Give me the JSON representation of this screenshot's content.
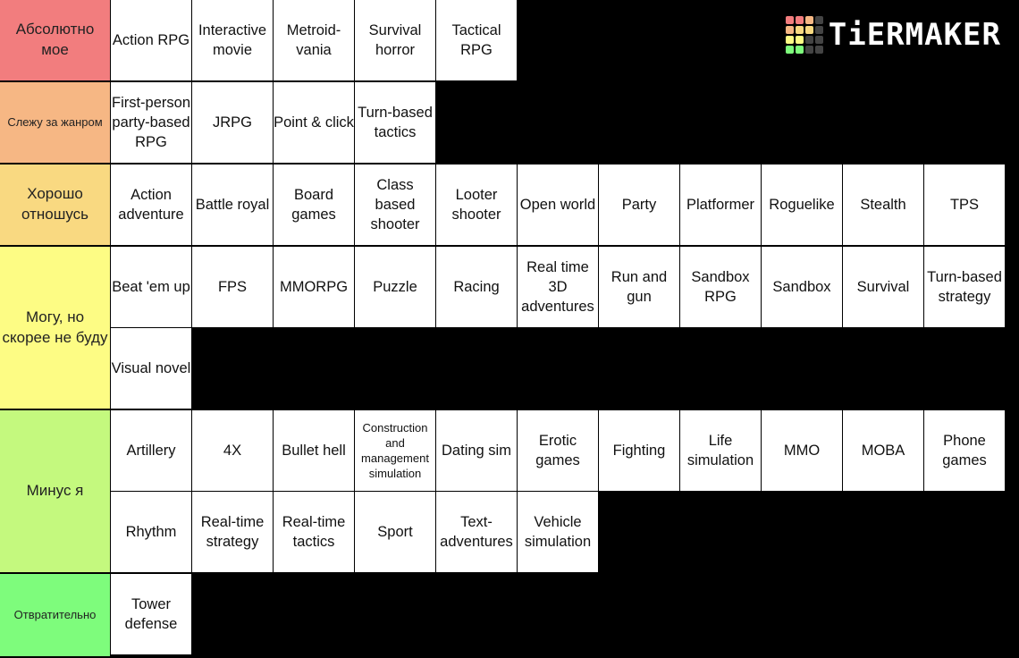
{
  "brand": {
    "logo_text": "TiERMAKER"
  },
  "tiers": [
    {
      "label": "Абсолютно мое",
      "color": "#f27d7e",
      "font_size": "17px",
      "rows": 1,
      "items": [
        "Action RPG",
        "Interactive movie",
        "Metroid-vania",
        "Survival horror",
        "Tactical RPG"
      ]
    },
    {
      "label": "Слежу за жанром",
      "color": "#f6b784",
      "font_size": "13px",
      "rows": 1,
      "items": [
        "First-person party-based RPG",
        "JRPG",
        "Point & click",
        "Turn-based tactics"
      ]
    },
    {
      "label": "Хорошо отношусь",
      "color": "#f9d981",
      "font_size": "17px",
      "rows": 1,
      "items": [
        "Action adventure",
        "Battle royal",
        "Board games",
        "Class based shooter",
        "Looter shooter",
        "Open world",
        "Party",
        "Platformer",
        "Roguelike",
        "Stealth",
        "TPS"
      ]
    },
    {
      "label": "Могу, но скорее не буду",
      "color": "#fdfc84",
      "font_size": "17px",
      "rows": 2,
      "items": [
        "Beat 'em up",
        "FPS",
        "MMORPG",
        "Puzzle",
        "Racing",
        "Real time 3D adventures",
        "Run and gun",
        "Sandbox RPG",
        "Sandbox",
        "Survival",
        "Turn-based strategy",
        "Visual novel"
      ]
    },
    {
      "label": "Минус я",
      "color": "#c4f97e",
      "font_size": "17px",
      "rows": 2,
      "items": [
        "Artillery",
        "4X",
        "Bullet hell",
        "Construction and management simulation",
        "Dating sim",
        "Erotic games",
        "Fighting",
        "Life simulation",
        "MMO",
        "MOBA",
        "Phone games",
        "Rhythm",
        "Real-time strategy",
        "Real-time tactics",
        "Sport",
        "Text-adventures",
        "Vehicle simulation"
      ]
    },
    {
      "label": "Отвратительно",
      "color": "#7efc7c",
      "font_size": "13px",
      "rows": 1,
      "items": [
        "Tower defense"
      ]
    }
  ]
}
